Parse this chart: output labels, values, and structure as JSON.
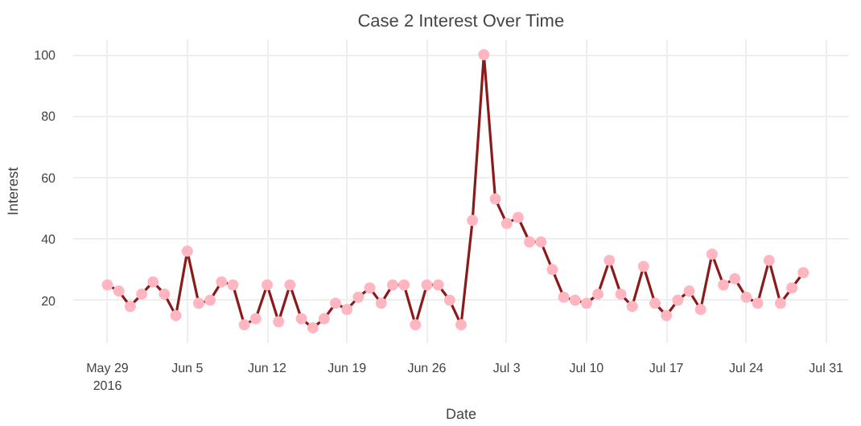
{
  "chart_data": {
    "type": "line",
    "title": "Case 2 Interest Over Time",
    "xlabel": "Date",
    "ylabel": "Interest",
    "x": [
      "2016-05-29",
      "2016-05-30",
      "2016-05-31",
      "2016-06-01",
      "2016-06-02",
      "2016-06-03",
      "2016-06-04",
      "2016-06-05",
      "2016-06-06",
      "2016-06-07",
      "2016-06-08",
      "2016-06-09",
      "2016-06-10",
      "2016-06-11",
      "2016-06-12",
      "2016-06-13",
      "2016-06-14",
      "2016-06-15",
      "2016-06-16",
      "2016-06-17",
      "2016-06-18",
      "2016-06-19",
      "2016-06-20",
      "2016-06-21",
      "2016-06-22",
      "2016-06-23",
      "2016-06-24",
      "2016-06-25",
      "2016-06-26",
      "2016-06-27",
      "2016-06-28",
      "2016-06-29",
      "2016-06-30",
      "2016-07-01",
      "2016-07-02",
      "2016-07-03",
      "2016-07-04",
      "2016-07-05",
      "2016-07-06",
      "2016-07-07",
      "2016-07-08",
      "2016-07-09",
      "2016-07-10",
      "2016-07-11",
      "2016-07-12",
      "2016-07-13",
      "2016-07-14",
      "2016-07-15",
      "2016-07-16",
      "2016-07-17",
      "2016-07-18",
      "2016-07-19",
      "2016-07-20",
      "2016-07-21",
      "2016-07-22",
      "2016-07-23",
      "2016-07-24",
      "2016-07-25",
      "2016-07-26",
      "2016-07-27",
      "2016-07-28",
      "2016-07-29"
    ],
    "series": [
      {
        "color": "#8b1a1a",
        "colors": [
          "#ffb6c1",
          "#ffb6c1",
          "#ffb6c1",
          "#ffb6c1",
          "#ffb6c1",
          "#ffb6c1",
          "#ffb6c1",
          "#ffb6c1",
          "#ffb6c1",
          "#ffb6c1",
          "#ffb6c1",
          "#ffb6c1",
          "#ffb6c1",
          "#ffb6c1",
          "#ffb6c1",
          "#ffb6c1",
          "#ffb6c1",
          "#ffb6c1",
          "#ffb6c1",
          "#ffb6c1",
          "#ffb6c1",
          "#ffb6c1",
          "#ffb6c1",
          "#ffb6c1",
          "#ffb6c1",
          "#ffb6c1",
          "#ffb6c1",
          "#ffb6c1",
          "#ffb6c1",
          "#ffb6c1",
          "#ffb6c1",
          "#ffb6c1",
          "#ffb6c1",
          "#ffb6c1",
          "#ffb6c1",
          "#ffb6c1",
          "#ffb6c1",
          "#ffb6c1",
          "#ffb6c1",
          "#ffb6c1",
          "#ffb6c1",
          "#ffb6c1",
          "#ffb6c1",
          "#ffb6c1",
          "#ffb6c1",
          "#ffb6c1",
          "#ffb6c1",
          "#ffb6c1",
          "#ffb6c1",
          "#ffb6c1",
          "#ffb6c1",
          "#ffb6c1",
          "#ffb6c1",
          "#ffb6c1",
          "#ffb6c1",
          "#ffb6c1",
          "#ffb6c1",
          "#ffb6c1",
          "#ffb6c1",
          "#ffb6c1",
          "#ffb6c1",
          "#ffb6c1"
        ],
        "values": [
          25,
          23,
          18,
          22,
          26,
          22,
          15,
          36,
          19,
          20,
          26,
          25,
          12,
          14,
          25,
          13,
          25,
          14,
          11,
          14,
          19,
          17,
          21,
          24,
          19,
          25,
          25,
          12,
          25,
          25,
          20,
          12,
          46,
          100,
          53,
          45,
          47,
          39,
          39,
          30,
          21,
          20,
          19,
          22,
          33,
          22,
          18,
          31,
          19,
          15,
          20,
          23,
          17,
          35,
          25,
          27,
          21,
          19,
          33,
          19,
          24,
          29
        ]
      }
    ],
    "xlim": [
      "2016-05-26",
      "2016-08-02"
    ],
    "xticks": [
      {
        "value": "2016-05-29",
        "label": "May 29\n2016"
      },
      {
        "value": "2016-06-05",
        "label": "Jun 5"
      },
      {
        "value": "2016-06-12",
        "label": "Jun 12"
      },
      {
        "value": "2016-06-19",
        "label": "Jun 19"
      },
      {
        "value": "2016-06-26",
        "label": "Jun 26"
      },
      {
        "value": "2016-07-03",
        "label": "Jul 3"
      },
      {
        "value": "2016-07-10",
        "label": "Jul 10"
      },
      {
        "value": "2016-07-17",
        "label": "Jul 17"
      },
      {
        "value": "2016-07-24",
        "label": "Jul 24"
      },
      {
        "value": "2016-07-31",
        "label": "Jul 31"
      }
    ],
    "ylim": [
      6,
      105
    ],
    "yticks": [
      20,
      40,
      60,
      80,
      100
    ],
    "grid": true,
    "marker": "circle",
    "line_style": "solid"
  }
}
